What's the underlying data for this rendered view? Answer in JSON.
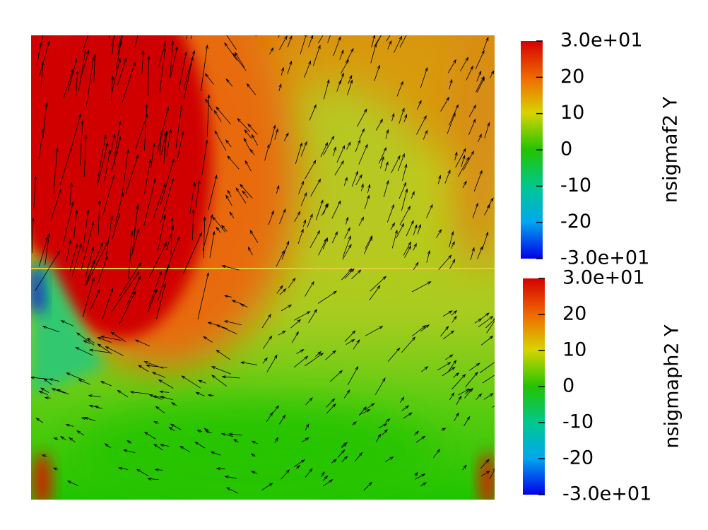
{
  "colorbars": [
    {
      "title": "nsigmaf2 Y",
      "lim": [
        -30,
        30
      ],
      "ticks": [
        {
          "value": 30,
          "label": "3.0e+01"
        },
        20,
        10,
        0,
        -10,
        -20,
        {
          "value": -30,
          "label": "-3.0e+01"
        }
      ]
    },
    {
      "title": "nsigmaph2 Y",
      "lim": [
        -30,
        30
      ],
      "ticks": [
        {
          "value": 30,
          "label": "3.0e+01"
        },
        20,
        10,
        0,
        -10,
        -20,
        {
          "value": -30,
          "label": "-3.0e+01"
        }
      ]
    }
  ]
}
